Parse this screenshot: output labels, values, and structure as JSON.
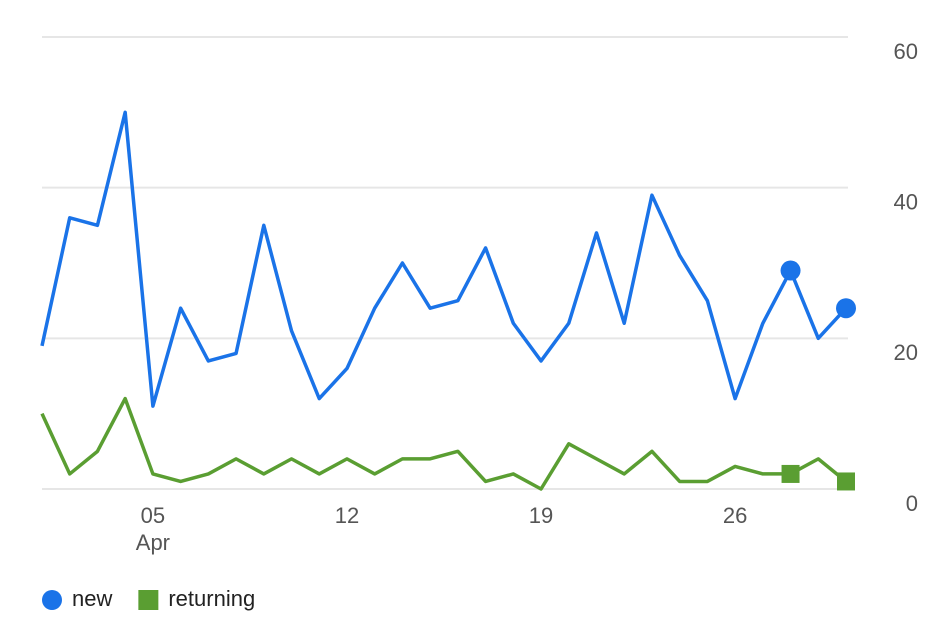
{
  "chart_data": {
    "type": "line",
    "categories": [
      null,
      null,
      null,
      null,
      "05",
      null,
      null,
      null,
      null,
      null,
      null,
      "12",
      null,
      null,
      null,
      null,
      null,
      null,
      "19",
      null,
      null,
      null,
      null,
      null,
      null,
      "26",
      null,
      null,
      null,
      null
    ],
    "month_label": "Apr",
    "series": [
      {
        "name": "new",
        "color": "#1a73e8",
        "marker": "circle",
        "values": [
          19,
          36,
          35,
          50,
          11,
          24,
          17,
          18,
          35,
          21,
          12,
          16,
          24,
          30,
          24,
          25,
          32,
          22,
          17,
          22,
          34,
          22,
          39,
          31,
          25,
          12,
          22,
          29,
          20,
          24
        ]
      },
      {
        "name": "returning",
        "color": "#5a9e32",
        "marker": "square",
        "values": [
          10,
          2,
          5,
          12,
          2,
          1,
          2,
          4,
          2,
          4,
          2,
          4,
          2,
          4,
          4,
          5,
          1,
          2,
          0,
          6,
          4,
          2,
          5,
          1,
          1,
          3,
          2,
          2,
          4,
          1
        ]
      }
    ],
    "marker_indices": [
      27,
      29
    ],
    "ylim": [
      0,
      60
    ],
    "yticks": [
      0,
      20,
      40,
      60
    ],
    "y_axis_side": "right",
    "grid": true
  }
}
